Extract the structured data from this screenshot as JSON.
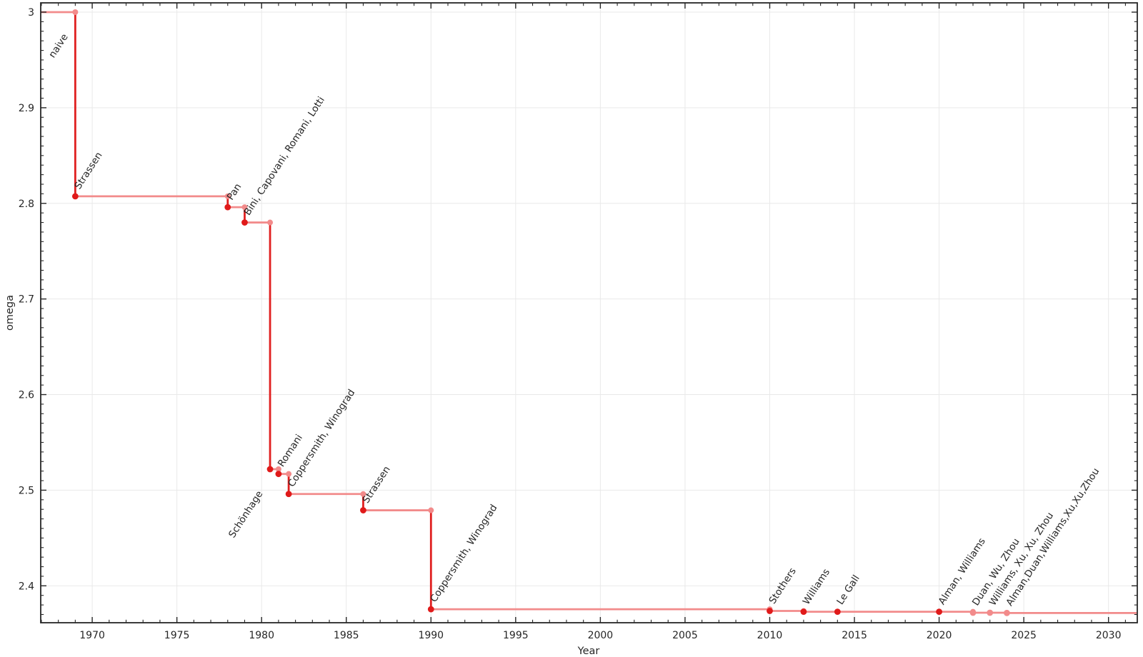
{
  "chart_data": {
    "type": "line",
    "subtype": "step-post",
    "title": "",
    "xlabel": "Year",
    "ylabel": "omega",
    "legend": "none",
    "grid": "major",
    "x_range": [
      1966.96,
      2031.7
    ],
    "y_range": [
      2.3614,
      3.0097
    ],
    "x_major_ticks": [
      1970,
      1975,
      1980,
      1985,
      1990,
      1995,
      2000,
      2005,
      2010,
      2015,
      2020,
      2025,
      2030
    ],
    "x_minor_step": 1,
    "y_major_ticks": [
      2.4,
      2.5,
      2.6,
      2.7,
      2.8,
      2.9,
      3.0
    ],
    "y_major_tick_labels": [
      "2.4",
      "2.5",
      "2.6",
      "2.7",
      "2.8",
      "2.9",
      "3"
    ],
    "y_minor_step": 0.01,
    "initial_value": {
      "omega": 3,
      "label": "naive",
      "label_style": "dark",
      "label_anchor": "end"
    },
    "points": [
      {
        "year": 1969,
        "omega": 2.8074,
        "label": "Strassen",
        "label_style": "dark",
        "label_anchor": "start"
      },
      {
        "year": 1978,
        "omega": 2.796,
        "label": "Pan",
        "label_style": "dark",
        "label_anchor": "start"
      },
      {
        "year": 1979,
        "omega": 2.78,
        "label": "Bini, Capovani, Romani, Lotti",
        "label_style": "dark",
        "label_anchor": "start"
      },
      {
        "year": 1980.5,
        "omega": 2.522,
        "label": "Schönhage",
        "label_style": "dark",
        "label_anchor": "end"
      },
      {
        "year": 1981,
        "omega": 2.517,
        "label": "Romani",
        "label_style": "dark",
        "label_anchor": "start"
      },
      {
        "year": 1981.6,
        "omega": 2.496,
        "label": "Coppersmith, Winograd",
        "label_style": "dark",
        "label_anchor": "start"
      },
      {
        "year": 1986,
        "omega": 2.479,
        "label": "Strassen",
        "label_style": "dark",
        "label_anchor": "start"
      },
      {
        "year": 1990,
        "omega": 2.3755,
        "label": "Coppersmith, Winograd",
        "label_style": "dark",
        "label_anchor": "start"
      },
      {
        "year": 2010,
        "omega": 2.3737,
        "label": "Stothers",
        "label_style": "dark",
        "label_anchor": "start"
      },
      {
        "year": 2012,
        "omega": 2.3729,
        "label": "Williams",
        "label_style": "dark",
        "label_anchor": "start"
      },
      {
        "year": 2014,
        "omega": 2.3728639,
        "label": "Le Gall",
        "label_style": "dark",
        "label_anchor": "start"
      },
      {
        "year": 2020,
        "omega": 2.3728596,
        "label": "Alman, Williams",
        "label_style": "dark",
        "label_anchor": "start"
      },
      {
        "year": 2022,
        "omega": 2.37188,
        "label": "Duan, Wu, Zhou",
        "label_style": "gray",
        "label_anchor": "start"
      },
      {
        "year": 2023,
        "omega": 2.371866,
        "label": "Williams, Xu, Xu, Zhou",
        "label_style": "gray",
        "label_anchor": "start"
      },
      {
        "year": 2024,
        "omega": 2.371552,
        "label": "Alman,Duan,Williams,Xu,Xu,Zhou",
        "label_style": "gray",
        "label_anchor": "start"
      }
    ],
    "colors": {
      "step_line": "#f28b8b",
      "drop_line": "#e02020",
      "marker_dark": "#e01a1a",
      "marker_light": "#f28b8b",
      "label_dark": "#1a1a1a",
      "label_gray": "#8f8f8f",
      "axis": "#262626",
      "grid": "#e9e9e9"
    }
  }
}
